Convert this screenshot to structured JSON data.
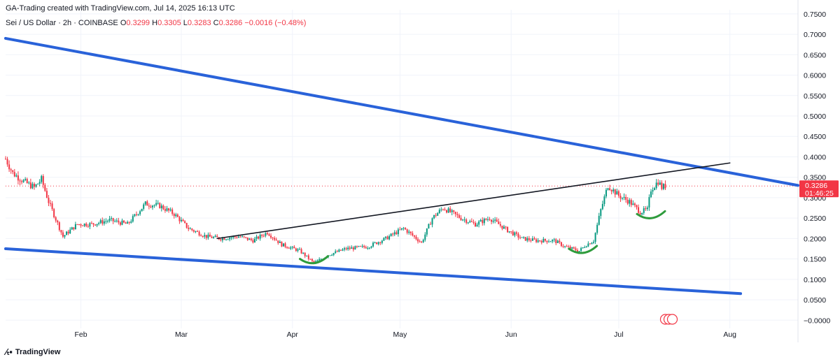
{
  "header": {
    "created_by": "GA-Trading created with TradingView.com, Jul 14, 2025 16:13 UTC",
    "symbol": "Sei / US Dollar · 2h · COINBASE",
    "open_label": "O",
    "open": "0.3299",
    "high_label": "H",
    "high": "0.3305",
    "low_label": "L",
    "low": "0.3283",
    "close_label": "C",
    "close": "0.3286",
    "change": "−0.0016 (−0.48%)"
  },
  "price_badge": {
    "price": "0.3286",
    "countdown": "01:46:25",
    "color": "#f23645"
  },
  "branding": {
    "logo_text": "TradingView"
  },
  "colors": {
    "candle_up": "#089981",
    "candle_down": "#f23645",
    "channel_line": "#2962d9",
    "support_arc": "#2e9b3c",
    "trend_line": "#131722",
    "grid": "#f0f3fa"
  },
  "chart_data": {
    "type": "candlestick",
    "title": "Sei / US Dollar · 2h · COINBASE",
    "x_axis": {
      "type": "date",
      "range": [
        "2025-01-11",
        "2025-08-20"
      ],
      "tick_labels": [
        {
          "label": "Feb",
          "date": "2025-02-01"
        },
        {
          "label": "Mar",
          "date": "2025-03-01"
        },
        {
          "label": "Apr",
          "date": "2025-04-01"
        },
        {
          "label": "May",
          "date": "2025-05-01"
        },
        {
          "label": "Jun",
          "date": "2025-06-01"
        },
        {
          "label": "Jul",
          "date": "2025-07-01"
        },
        {
          "label": "Aug",
          "date": "2025-08-01"
        }
      ]
    },
    "y_axis": {
      "range": [
        -0.02,
        0.76
      ],
      "tick_labels": [
        "0.7500",
        "0.7000",
        "0.6500",
        "0.6000",
        "0.5500",
        "0.5000",
        "0.4500",
        "0.4000",
        "0.3500",
        "0.3000",
        "0.2500",
        "0.2000",
        "0.1500",
        "0.1000",
        "0.0500",
        "−0.0000"
      ],
      "tick_values": [
        0.75,
        0.7,
        0.65,
        0.6,
        0.55,
        0.5,
        0.45,
        0.4,
        0.35,
        0.3,
        0.25,
        0.2,
        0.15,
        0.1,
        0.05,
        0.0
      ]
    },
    "grid": true,
    "price_path": [
      [
        "2025-01-11",
        0.395
      ],
      [
        "2025-01-13",
        0.36
      ],
      [
        "2025-01-16",
        0.34
      ],
      [
        "2025-01-19",
        0.325
      ],
      [
        "2025-01-21",
        0.345
      ],
      [
        "2025-01-23",
        0.29
      ],
      [
        "2025-01-27",
        0.205
      ],
      [
        "2025-01-31",
        0.235
      ],
      [
        "2025-02-04",
        0.235
      ],
      [
        "2025-02-09",
        0.245
      ],
      [
        "2025-02-14",
        0.235
      ],
      [
        "2025-02-19",
        0.285
      ],
      [
        "2025-02-23",
        0.28
      ],
      [
        "2025-02-27",
        0.26
      ],
      [
        "2025-03-03",
        0.225
      ],
      [
        "2025-03-08",
        0.205
      ],
      [
        "2025-03-12",
        0.2
      ],
      [
        "2025-03-17",
        0.205
      ],
      [
        "2025-03-21",
        0.195
      ],
      [
        "2025-03-25",
        0.215
      ],
      [
        "2025-03-29",
        0.185
      ],
      [
        "2025-04-03",
        0.17
      ],
      [
        "2025-04-07",
        0.14
      ],
      [
        "2025-04-11",
        0.16
      ],
      [
        "2025-04-16",
        0.175
      ],
      [
        "2025-04-22",
        0.18
      ],
      [
        "2025-04-27",
        0.2
      ],
      [
        "2025-05-02",
        0.225
      ],
      [
        "2025-05-07",
        0.19
      ],
      [
        "2025-05-10",
        0.25
      ],
      [
        "2025-05-13",
        0.275
      ],
      [
        "2025-05-18",
        0.25
      ],
      [
        "2025-05-22",
        0.235
      ],
      [
        "2025-05-26",
        0.25
      ],
      [
        "2025-05-31",
        0.22
      ],
      [
        "2025-06-04",
        0.2
      ],
      [
        "2025-06-08",
        0.195
      ],
      [
        "2025-06-13",
        0.195
      ],
      [
        "2025-06-16",
        0.18
      ],
      [
        "2025-06-20",
        0.17
      ],
      [
        "2025-06-22",
        0.185
      ],
      [
        "2025-06-24",
        0.195
      ],
      [
        "2025-06-26",
        0.27
      ],
      [
        "2025-06-28",
        0.33
      ],
      [
        "2025-07-01",
        0.305
      ],
      [
        "2025-07-04",
        0.29
      ],
      [
        "2025-07-07",
        0.265
      ],
      [
        "2025-07-09",
        0.27
      ],
      [
        "2025-07-10",
        0.32
      ],
      [
        "2025-07-12",
        0.34
      ],
      [
        "2025-07-13",
        0.325
      ],
      [
        "2025-07-14",
        0.3286
      ]
    ],
    "annotations": [
      {
        "kind": "trendline",
        "label": "upper channel (descending)",
        "from": [
          "2025-01-11",
          0.69
        ],
        "to": [
          "2025-08-20",
          0.33
        ]
      },
      {
        "kind": "trendline",
        "label": "lower channel (descending)",
        "from": [
          "2025-01-11",
          0.175
        ],
        "to": [
          "2025-08-04",
          0.065
        ]
      },
      {
        "kind": "trendline",
        "label": "rising resistance",
        "from": [
          "2025-03-11",
          0.2
        ],
        "to": [
          "2025-08-01",
          0.385
        ]
      },
      {
        "kind": "arc",
        "label": "support",
        "center": [
          "2025-04-07",
          0.15
        ]
      },
      {
        "kind": "arc",
        "label": "support",
        "center": [
          "2025-06-21",
          0.175
        ]
      },
      {
        "kind": "arc",
        "label": "support",
        "center": [
          "2025-07-10",
          0.26
        ]
      }
    ],
    "last_price_line": 0.3286
  }
}
